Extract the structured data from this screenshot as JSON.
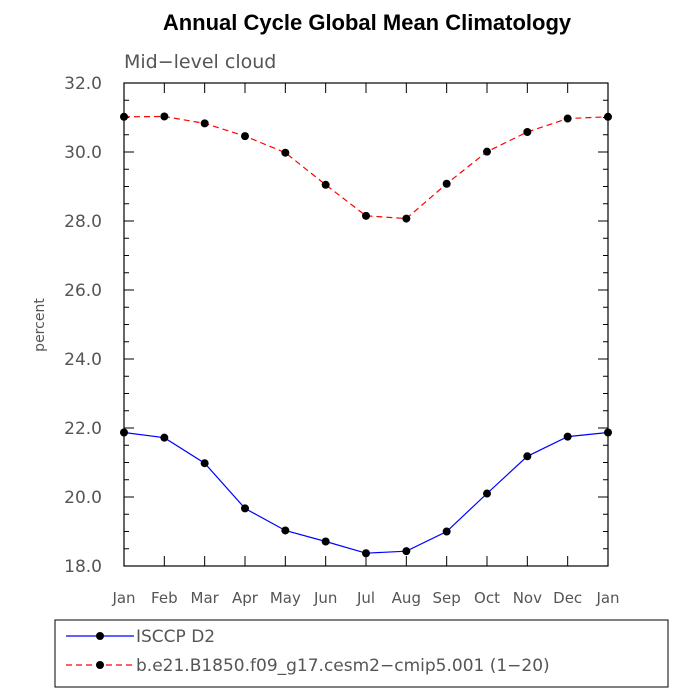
{
  "chart_data": {
    "type": "line",
    "title": "Annual Cycle Global Mean Climatology",
    "subtitle": "Mid−level cloud",
    "xlabel": "",
    "ylabel": "percent",
    "categories": [
      "Jan",
      "Feb",
      "Mar",
      "Apr",
      "May",
      "Jun",
      "Jul",
      "Aug",
      "Sep",
      "Oct",
      "Nov",
      "Dec",
      "Jan"
    ],
    "yticks": [
      "18.0",
      "20.0",
      "22.0",
      "24.0",
      "26.0",
      "28.0",
      "30.0",
      "32.0"
    ],
    "ylim": [
      18,
      32
    ],
    "grid": false,
    "legend_position": "bottom",
    "series": [
      {
        "name": "ISCCP D2",
        "color": "#0000ff",
        "line_style": "solid",
        "marker": "filled-circle",
        "values": [
          21.87,
          21.72,
          20.98,
          19.67,
          19.03,
          18.71,
          18.37,
          18.43,
          19.0,
          20.1,
          21.18,
          21.75,
          21.87
        ]
      },
      {
        "name": "b.e21.B1850.f09_g17.cesm2−cmip5.001 (1−20)",
        "color": "#ff0000",
        "line_style": "dashed",
        "marker": "filled-circle",
        "values": [
          31.02,
          31.03,
          30.83,
          30.46,
          29.98,
          29.05,
          28.15,
          28.07,
          29.08,
          30.01,
          30.58,
          30.97,
          31.02
        ]
      }
    ]
  }
}
